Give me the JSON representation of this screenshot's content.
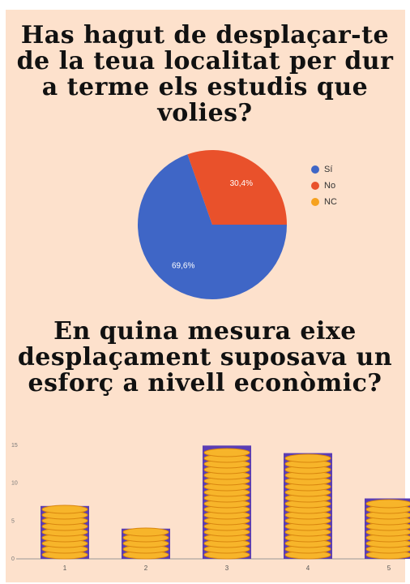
{
  "chart_data": [
    {
      "type": "pie",
      "title": "Has hagut de desplaçar-te de la teua localitat per dur a terme els estudis que volies?",
      "categories": [
        "Sí",
        "No",
        "NC"
      ],
      "values": [
        69.6,
        30.4,
        0
      ],
      "value_labels": [
        "69,6%",
        "30,4%",
        null
      ],
      "colors": [
        "#3f66c6",
        "#e9512b",
        "#f6a21f"
      ],
      "legend": "right"
    },
    {
      "type": "bar",
      "title": "En quina mesura eixe desplaçament suposava un esforç a nivell econòmic?",
      "categories": [
        "1",
        "2",
        "3",
        "4",
        "5"
      ],
      "values": [
        7,
        4,
        15,
        14,
        8
      ],
      "color": "#5a3db5",
      "ylim": [
        0,
        16
      ],
      "yticks": [
        0,
        5,
        10,
        15
      ],
      "grid": false
    }
  ]
}
